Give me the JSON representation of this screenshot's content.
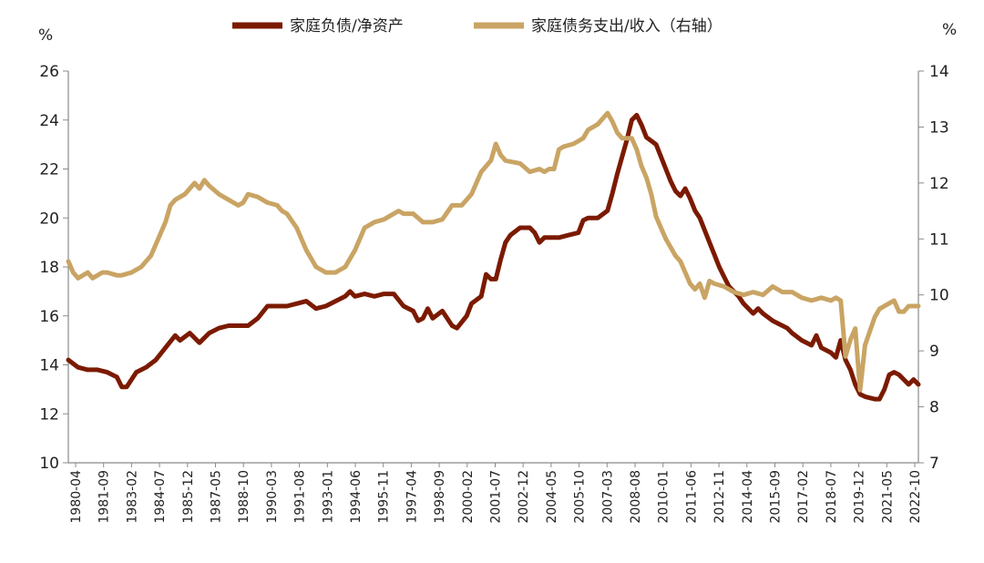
{
  "chart_data": {
    "type": "line",
    "title": "",
    "y_left": {
      "unit": "%",
      "min": 10,
      "max": 26,
      "step": 2
    },
    "y_right": {
      "unit": "%",
      "min": 7,
      "max": 14,
      "step": 1
    },
    "x_ticks": [
      "1980-04",
      "1981-09",
      "1983-02",
      "1984-07",
      "1985-12",
      "1987-05",
      "1988-10",
      "1990-03",
      "1991-08",
      "1993-01",
      "1994-06",
      "1995-11",
      "1997-04",
      "1998-09",
      "2000-02",
      "2001-07",
      "2002-12",
      "2004-05",
      "2005-10",
      "2007-03",
      "2008-08",
      "2010-01",
      "2011-06",
      "2012-11",
      "2014-04",
      "2015-09",
      "2017-02",
      "2018-07",
      "2019-12",
      "2021-05",
      "2022-10"
    ],
    "x_range": [
      1980.25,
      2024.0
    ],
    "legend_position": "top",
    "grid": false,
    "series": [
      {
        "name": "家庭负债/净资产",
        "axis": "left",
        "color": "#7B1A00",
        "points": [
          [
            1980.25,
            14.2
          ],
          [
            1980.75,
            13.9
          ],
          [
            1981.25,
            13.8
          ],
          [
            1981.75,
            13.8
          ],
          [
            1982.25,
            13.7
          ],
          [
            1982.75,
            13.5
          ],
          [
            1983.0,
            13.1
          ],
          [
            1983.25,
            13.1
          ],
          [
            1983.75,
            13.7
          ],
          [
            1984.25,
            13.9
          ],
          [
            1984.75,
            14.2
          ],
          [
            1985.25,
            14.7
          ],
          [
            1985.75,
            15.2
          ],
          [
            1986.0,
            15.0
          ],
          [
            1986.5,
            15.3
          ],
          [
            1987.0,
            14.9
          ],
          [
            1987.5,
            15.3
          ],
          [
            1988.0,
            15.5
          ],
          [
            1988.5,
            15.6
          ],
          [
            1989.0,
            15.6
          ],
          [
            1989.5,
            15.6
          ],
          [
            1990.0,
            15.9
          ],
          [
            1990.5,
            16.4
          ],
          [
            1991.0,
            16.4
          ],
          [
            1991.5,
            16.4
          ],
          [
            1992.0,
            16.5
          ],
          [
            1992.5,
            16.6
          ],
          [
            1993.0,
            16.3
          ],
          [
            1993.5,
            16.4
          ],
          [
            1994.0,
            16.6
          ],
          [
            1994.5,
            16.8
          ],
          [
            1994.75,
            17.0
          ],
          [
            1995.0,
            16.8
          ],
          [
            1995.5,
            16.9
          ],
          [
            1996.0,
            16.8
          ],
          [
            1996.5,
            16.9
          ],
          [
            1997.0,
            16.9
          ],
          [
            1997.5,
            16.4
          ],
          [
            1998.0,
            16.2
          ],
          [
            1998.25,
            15.8
          ],
          [
            1998.5,
            15.9
          ],
          [
            1998.75,
            16.3
          ],
          [
            1999.0,
            15.9
          ],
          [
            1999.5,
            16.2
          ],
          [
            2000.0,
            15.6
          ],
          [
            2000.25,
            15.5
          ],
          [
            2000.75,
            16.0
          ],
          [
            2001.0,
            16.5
          ],
          [
            2001.5,
            16.8
          ],
          [
            2001.75,
            17.7
          ],
          [
            2002.0,
            17.5
          ],
          [
            2002.25,
            17.5
          ],
          [
            2002.5,
            18.3
          ],
          [
            2002.75,
            19.0
          ],
          [
            2003.0,
            19.3
          ],
          [
            2003.5,
            19.6
          ],
          [
            2004.0,
            19.6
          ],
          [
            2004.25,
            19.4
          ],
          [
            2004.5,
            19.0
          ],
          [
            2004.75,
            19.2
          ],
          [
            2005.0,
            19.2
          ],
          [
            2005.5,
            19.2
          ],
          [
            2006.0,
            19.3
          ],
          [
            2006.5,
            19.4
          ],
          [
            2006.75,
            19.9
          ],
          [
            2007.0,
            20.0
          ],
          [
            2007.5,
            20.0
          ],
          [
            2008.0,
            20.3
          ],
          [
            2008.25,
            21.0
          ],
          [
            2008.5,
            21.8
          ],
          [
            2008.75,
            22.5
          ],
          [
            2009.0,
            23.2
          ],
          [
            2009.25,
            24.0
          ],
          [
            2009.5,
            24.2
          ],
          [
            2009.75,
            23.8
          ],
          [
            2010.0,
            23.3
          ],
          [
            2010.5,
            23.0
          ],
          [
            2011.0,
            22.0
          ],
          [
            2011.25,
            21.5
          ],
          [
            2011.5,
            21.1
          ],
          [
            2011.75,
            20.9
          ],
          [
            2012.0,
            21.2
          ],
          [
            2012.25,
            20.8
          ],
          [
            2012.5,
            20.3
          ],
          [
            2012.75,
            20.0
          ],
          [
            2013.0,
            19.5
          ],
          [
            2013.25,
            19.0
          ],
          [
            2013.5,
            18.5
          ],
          [
            2013.75,
            18.0
          ],
          [
            2014.0,
            17.6
          ],
          [
            2014.25,
            17.2
          ],
          [
            2014.75,
            16.8
          ],
          [
            2015.0,
            16.5
          ],
          [
            2015.25,
            16.3
          ],
          [
            2015.5,
            16.1
          ],
          [
            2015.75,
            16.3
          ],
          [
            2016.0,
            16.1
          ],
          [
            2016.5,
            15.8
          ],
          [
            2017.0,
            15.6
          ],
          [
            2017.25,
            15.5
          ],
          [
            2017.5,
            15.3
          ],
          [
            2018.0,
            15.0
          ],
          [
            2018.5,
            14.8
          ],
          [
            2018.75,
            15.2
          ],
          [
            2019.0,
            14.7
          ],
          [
            2019.5,
            14.5
          ],
          [
            2019.75,
            14.3
          ],
          [
            2020.0,
            15.0
          ],
          [
            2020.25,
            14.2
          ],
          [
            2020.5,
            13.8
          ],
          [
            2020.75,
            13.2
          ],
          [
            2021.0,
            12.8
          ],
          [
            2021.25,
            12.7
          ],
          [
            2021.75,
            12.6
          ],
          [
            2022.0,
            12.6
          ],
          [
            2022.25,
            13.0
          ],
          [
            2022.5,
            13.6
          ],
          [
            2022.75,
            13.7
          ],
          [
            2023.0,
            13.6
          ],
          [
            2023.25,
            13.4
          ],
          [
            2023.5,
            13.2
          ],
          [
            2023.75,
            13.4
          ],
          [
            2024.0,
            13.2
          ]
        ]
      },
      {
        "name": "家庭债务支出/收入（右轴）",
        "axis": "right",
        "color": "#C9A464",
        "points": [
          [
            1980.25,
            10.6
          ],
          [
            1980.5,
            10.4
          ],
          [
            1980.75,
            10.3
          ],
          [
            1981.25,
            10.4
          ],
          [
            1981.5,
            10.3
          ],
          [
            1982.0,
            10.4
          ],
          [
            1982.25,
            10.4
          ],
          [
            1982.75,
            10.35
          ],
          [
            1983.0,
            10.35
          ],
          [
            1983.5,
            10.4
          ],
          [
            1984.0,
            10.5
          ],
          [
            1984.5,
            10.7
          ],
          [
            1984.75,
            10.9
          ],
          [
            1985.0,
            11.1
          ],
          [
            1985.25,
            11.3
          ],
          [
            1985.5,
            11.6
          ],
          [
            1985.75,
            11.7
          ],
          [
            1986.25,
            11.8
          ],
          [
            1986.75,
            12.0
          ],
          [
            1987.0,
            11.9
          ],
          [
            1987.25,
            12.05
          ],
          [
            1987.5,
            11.95
          ],
          [
            1988.0,
            11.8
          ],
          [
            1988.5,
            11.7
          ],
          [
            1989.0,
            11.6
          ],
          [
            1989.25,
            11.65
          ],
          [
            1989.5,
            11.8
          ],
          [
            1990.0,
            11.75
          ],
          [
            1990.5,
            11.65
          ],
          [
            1991.0,
            11.6
          ],
          [
            1991.25,
            11.5
          ],
          [
            1991.5,
            11.45
          ],
          [
            1992.0,
            11.2
          ],
          [
            1992.5,
            10.8
          ],
          [
            1993.0,
            10.5
          ],
          [
            1993.5,
            10.4
          ],
          [
            1994.0,
            10.4
          ],
          [
            1994.5,
            10.5
          ],
          [
            1995.0,
            10.8
          ],
          [
            1995.5,
            11.2
          ],
          [
            1996.0,
            11.3
          ],
          [
            1996.5,
            11.35
          ],
          [
            1997.0,
            11.45
          ],
          [
            1997.25,
            11.5
          ],
          [
            1997.5,
            11.45
          ],
          [
            1998.0,
            11.45
          ],
          [
            1998.5,
            11.3
          ],
          [
            1999.0,
            11.3
          ],
          [
            1999.5,
            11.35
          ],
          [
            2000.0,
            11.6
          ],
          [
            2000.5,
            11.6
          ],
          [
            2001.0,
            11.8
          ],
          [
            2001.5,
            12.2
          ],
          [
            2002.0,
            12.4
          ],
          [
            2002.25,
            12.7
          ],
          [
            2002.5,
            12.5
          ],
          [
            2002.75,
            12.4
          ],
          [
            2003.5,
            12.35
          ],
          [
            2004.0,
            12.2
          ],
          [
            2004.5,
            12.25
          ],
          [
            2004.75,
            12.2
          ],
          [
            2005.0,
            12.25
          ],
          [
            2005.25,
            12.25
          ],
          [
            2005.5,
            12.6
          ],
          [
            2005.75,
            12.65
          ],
          [
            2006.25,
            12.7
          ],
          [
            2006.75,
            12.8
          ],
          [
            2007.0,
            12.95
          ],
          [
            2007.5,
            13.05
          ],
          [
            2007.75,
            13.15
          ],
          [
            2008.0,
            13.25
          ],
          [
            2008.25,
            13.1
          ],
          [
            2008.5,
            12.9
          ],
          [
            2008.75,
            12.8
          ],
          [
            2009.25,
            12.8
          ],
          [
            2009.5,
            12.6
          ],
          [
            2009.75,
            12.3
          ],
          [
            2010.0,
            12.1
          ],
          [
            2010.25,
            11.8
          ],
          [
            2010.5,
            11.4
          ],
          [
            2010.75,
            11.2
          ],
          [
            2011.0,
            11.0
          ],
          [
            2011.5,
            10.7
          ],
          [
            2011.75,
            10.6
          ],
          [
            2012.0,
            10.4
          ],
          [
            2012.25,
            10.2
          ],
          [
            2012.5,
            10.1
          ],
          [
            2012.75,
            10.2
          ],
          [
            2013.0,
            9.95
          ],
          [
            2013.25,
            10.25
          ],
          [
            2013.5,
            10.2
          ],
          [
            2014.0,
            10.15
          ],
          [
            2014.5,
            10.05
          ],
          [
            2015.0,
            10.0
          ],
          [
            2015.5,
            10.05
          ],
          [
            2016.0,
            10.0
          ],
          [
            2016.5,
            10.15
          ],
          [
            2017.0,
            10.05
          ],
          [
            2017.5,
            10.05
          ],
          [
            2018.0,
            9.95
          ],
          [
            2018.5,
            9.9
          ],
          [
            2019.0,
            9.95
          ],
          [
            2019.5,
            9.9
          ],
          [
            2019.75,
            9.95
          ],
          [
            2020.0,
            9.9
          ],
          [
            2020.25,
            8.9
          ],
          [
            2020.5,
            9.2
          ],
          [
            2020.75,
            9.4
          ],
          [
            2021.0,
            8.3
          ],
          [
            2021.25,
            9.1
          ],
          [
            2021.5,
            9.35
          ],
          [
            2021.75,
            9.6
          ],
          [
            2022.0,
            9.75
          ],
          [
            2022.5,
            9.85
          ],
          [
            2022.75,
            9.9
          ],
          [
            2023.0,
            9.7
          ],
          [
            2023.25,
            9.7
          ],
          [
            2023.5,
            9.8
          ],
          [
            2024.0,
            9.8
          ]
        ]
      }
    ]
  }
}
